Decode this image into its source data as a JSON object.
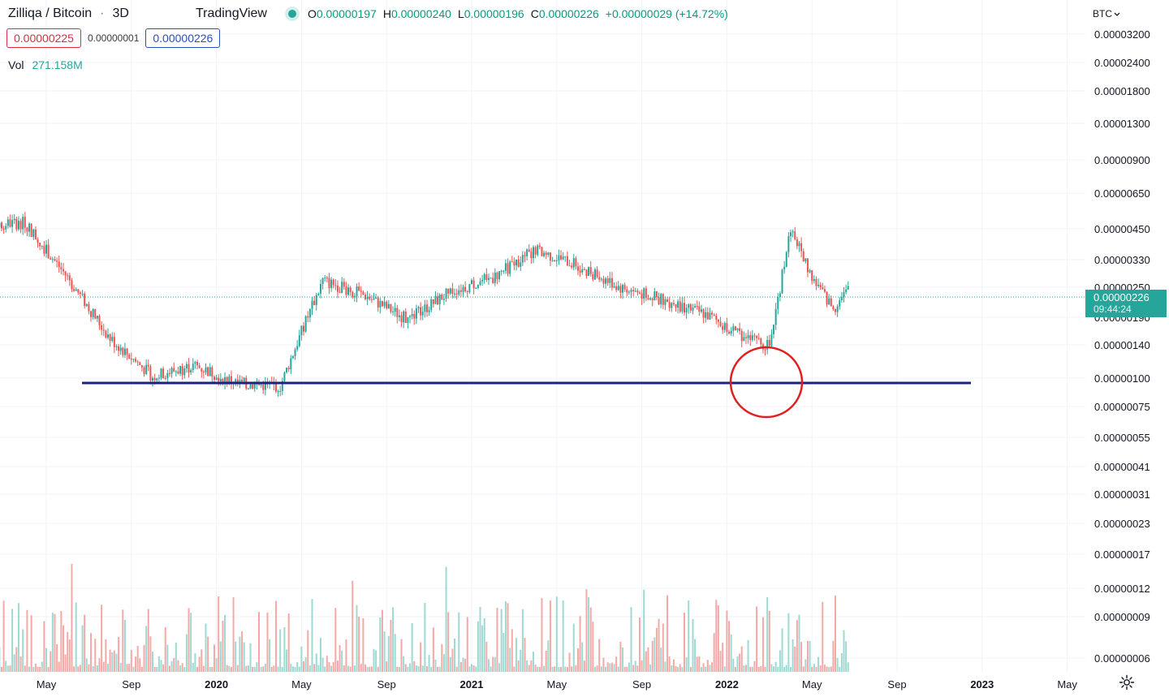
{
  "header": {
    "symbol": "Zilliqa / Bitcoin",
    "separator": "·",
    "interval": "3D",
    "brand": "TradingView",
    "ohlc": {
      "o_key": "O",
      "o_val": "0.00000197",
      "h_key": "H",
      "h_val": "0.00000240",
      "l_key": "L",
      "l_val": "0.00000196",
      "c_key": "C",
      "c_val": "0.00000226",
      "change": "+0.00000029 (+14.72%)"
    }
  },
  "trade": {
    "sell": "0.00000225",
    "spread": "0.00000001",
    "buy": "0.00000226"
  },
  "volume": {
    "label": "Vol",
    "value": "271.158M"
  },
  "price_axis": {
    "currency": "BTC",
    "ticks": [
      "0.00003200",
      "0.00002400",
      "0.00001800",
      "0.00001300",
      "0.00000900",
      "0.00000650",
      "0.00000450",
      "0.00000330",
      "0.00000250",
      "0.00000190",
      "0.00000140",
      "0.00000100",
      "0.00000075",
      "0.00000055",
      "0.00000041",
      "0.00000031",
      "0.00000023",
      "0.00000017",
      "0.00000012",
      "0.00000009",
      "0.00000006"
    ]
  },
  "last_price": {
    "value": "0.00000226",
    "countdown": "09:44:24"
  },
  "colors": {
    "up": "#26a69a",
    "down": "#ef5350",
    "trendline": "#1a237e",
    "circle": "#e0201f",
    "grid": "#f0f3fa",
    "tag": "#26a69a"
  },
  "icons": {
    "settings": "gear-icon",
    "currency_dropdown": "chevron-down-icon"
  },
  "chart_data": {
    "type": "candlestick",
    "scale": "log",
    "title": "Zilliqa / Bitcoin",
    "ylabel": "BTC",
    "time_ticks": [
      "May",
      "Sep",
      "2020",
      "May",
      "Sep",
      "2021",
      "May",
      "Sep",
      "2022",
      "May",
      "Sep",
      "2023",
      "May"
    ],
    "time_tick_dates": [
      "2019-05",
      "2019-09",
      "2020-01",
      "2020-05",
      "2020-09",
      "2021-01",
      "2021-05",
      "2021-09",
      "2022-01",
      "2022-05",
      "2022-09",
      "2023-01",
      "2023-05"
    ],
    "price_anchors": [
      {
        "date": "2019-02",
        "price": 4.7e-06
      },
      {
        "date": "2019-04",
        "price": 4.8e-06
      },
      {
        "date": "2019-06",
        "price": 2.4e-06
      },
      {
        "date": "2019-08",
        "price": 1.1e-06
      },
      {
        "date": "2019-10",
        "price": 6.8e-07
      },
      {
        "date": "2019-12",
        "price": 7.8e-07
      },
      {
        "date": "2020-02",
        "price": 6.2e-07
      },
      {
        "date": "2020-04",
        "price": 6e-07
      },
      {
        "date": "2020-05",
        "price": 1.2e-06
      },
      {
        "date": "2020-06",
        "price": 2.3e-06
      },
      {
        "date": "2020-08",
        "price": 1.9e-06
      },
      {
        "date": "2020-10",
        "price": 1.4e-06
      },
      {
        "date": "2020-12",
        "price": 2e-06
      },
      {
        "date": "2021-02",
        "price": 2.4e-06
      },
      {
        "date": "2021-04",
        "price": 3.4e-06
      },
      {
        "date": "2021-06",
        "price": 2.8e-06
      },
      {
        "date": "2021-08",
        "price": 2.1e-06
      },
      {
        "date": "2021-10",
        "price": 1.8e-06
      },
      {
        "date": "2021-12",
        "price": 1.5e-06
      },
      {
        "date": "2022-02",
        "price": 1.1e-06
      },
      {
        "date": "2022-03",
        "price": 1e-06
      },
      {
        "date": "2022-04",
        "price": 4.5e-06
      },
      {
        "date": "2022-05",
        "price": 2.4e-06
      },
      {
        "date": "2022-06",
        "price": 1.6e-06
      },
      {
        "date": "2022-07",
        "price": 2.26e-06
      }
    ],
    "last": {
      "open": 1.97e-06,
      "high": 2.4e-06,
      "low": 1.96e-06,
      "close": 2.26e-06
    },
    "support_level": 9.5e-07,
    "annotation": {
      "type": "circle",
      "date": "2022-03",
      "price": 1.1e-06
    }
  }
}
